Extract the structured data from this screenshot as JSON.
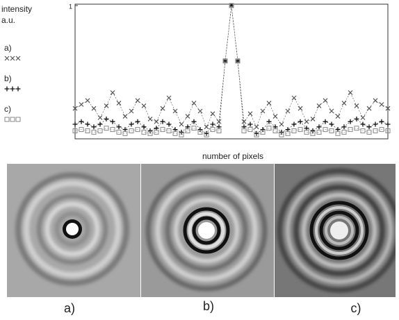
{
  "chart_data": {
    "type": "scatter",
    "ylabel": [
      "intensity",
      "a.u."
    ],
    "xlabel": "number of pixels",
    "xlim": [
      0,
      100
    ],
    "ylim": [
      0,
      1
    ],
    "yticks": [
      1
    ],
    "x": [
      0,
      2,
      4,
      6,
      8,
      10,
      12,
      14,
      16,
      18,
      20,
      22,
      24,
      26,
      28,
      30,
      32,
      34,
      36,
      38,
      40,
      42,
      44,
      46,
      48,
      50,
      52,
      54,
      56,
      58,
      60,
      62,
      64,
      66,
      68,
      70,
      72,
      74,
      76,
      78,
      80,
      82,
      84,
      86,
      88,
      90,
      92,
      94,
      96,
      98,
      100
    ],
    "series": [
      {
        "name": "a)",
        "marker": "x",
        "color": "#555555",
        "values": [
          0.22,
          0.25,
          0.28,
          0.22,
          0.15,
          0.24,
          0.34,
          0.26,
          0.16,
          0.2,
          0.28,
          0.24,
          0.14,
          0.12,
          0.22,
          0.3,
          0.2,
          0.1,
          0.16,
          0.26,
          0.2,
          0.08,
          0.18,
          0.12,
          0.58,
          1.0,
          0.58,
          0.12,
          0.18,
          0.08,
          0.2,
          0.26,
          0.16,
          0.1,
          0.2,
          0.3,
          0.22,
          0.12,
          0.14,
          0.24,
          0.28,
          0.2,
          0.16,
          0.26,
          0.34,
          0.24,
          0.15,
          0.22,
          0.28,
          0.25,
          0.22
        ]
      },
      {
        "name": "b)",
        "marker": "plus",
        "color": "#111111",
        "values": [
          0.1,
          0.12,
          0.1,
          0.08,
          0.1,
          0.14,
          0.12,
          0.08,
          0.06,
          0.1,
          0.12,
          0.08,
          0.05,
          0.07,
          0.12,
          0.1,
          0.06,
          0.04,
          0.08,
          0.12,
          0.06,
          0.03,
          0.1,
          0.08,
          0.58,
          1.0,
          0.58,
          0.08,
          0.1,
          0.03,
          0.06,
          0.12,
          0.08,
          0.04,
          0.06,
          0.1,
          0.12,
          0.07,
          0.05,
          0.08,
          0.12,
          0.1,
          0.06,
          0.08,
          0.12,
          0.14,
          0.1,
          0.08,
          0.1,
          0.12,
          0.1
        ]
      },
      {
        "name": "c)",
        "marker": "square",
        "color": "#888888",
        "values": [
          0.05,
          0.06,
          0.05,
          0.04,
          0.05,
          0.07,
          0.06,
          0.04,
          0.03,
          0.05,
          0.06,
          0.04,
          0.03,
          0.04,
          0.06,
          0.05,
          0.03,
          0.02,
          0.05,
          0.07,
          0.04,
          0.02,
          0.06,
          0.05,
          0.58,
          1.0,
          0.58,
          0.05,
          0.06,
          0.02,
          0.04,
          0.07,
          0.05,
          0.02,
          0.03,
          0.05,
          0.06,
          0.04,
          0.03,
          0.04,
          0.06,
          0.05,
          0.03,
          0.04,
          0.06,
          0.07,
          0.05,
          0.04,
          0.05,
          0.06,
          0.05
        ]
      }
    ]
  },
  "figure_labels": [
    "a)",
    "b)",
    "c)"
  ]
}
